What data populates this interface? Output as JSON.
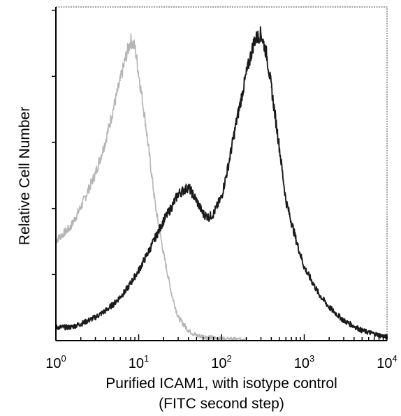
{
  "chart_data": {
    "type": "line",
    "title": "",
    "xlabel": "Purified ICAM1, with isotype control",
    "xlabel_line2": "(FITC second step)",
    "ylabel": "Relative Cell Number",
    "x_scale": "log",
    "xlim": [
      1,
      10000
    ],
    "ylim": [
      0,
      1.0
    ],
    "x_ticks": [
      {
        "base": "10",
        "exp": "0",
        "value": 1
      },
      {
        "base": "10",
        "exp": "1",
        "value": 10
      },
      {
        "base": "10",
        "exp": "2",
        "value": 100
      },
      {
        "base": "10",
        "exp": "3",
        "value": 1000
      },
      {
        "base": "10",
        "exp": "4",
        "value": 10000
      }
    ],
    "y_tick_count": 5,
    "grid": false,
    "legend": "none",
    "series": [
      {
        "role": "isotype control",
        "color": "#b5b5b5",
        "x": [
          1,
          1.5,
          2,
          3,
          4,
          5,
          6,
          7,
          8,
          9,
          10,
          12,
          14,
          16,
          20,
          25,
          30,
          40,
          50,
          70,
          100,
          150,
          200
        ],
        "y": [
          0.3,
          0.34,
          0.4,
          0.5,
          0.6,
          0.7,
          0.78,
          0.85,
          0.9,
          0.88,
          0.8,
          0.66,
          0.52,
          0.4,
          0.26,
          0.14,
          0.07,
          0.03,
          0.015,
          0.01,
          0.005,
          0.003,
          0.002
        ]
      },
      {
        "role": "Purified ICAM1",
        "color": "#1a1a1a",
        "x": [
          1,
          1.5,
          2,
          3,
          4,
          5,
          7,
          10,
          14,
          20,
          25,
          30,
          40,
          50,
          60,
          70,
          80,
          100,
          120,
          150,
          200,
          250,
          300,
          350,
          400,
          500,
          600,
          800,
          1000,
          1500,
          2000,
          3000,
          5000,
          10000
        ],
        "y": [
          0.04,
          0.04,
          0.05,
          0.07,
          0.09,
          0.11,
          0.15,
          0.21,
          0.28,
          0.36,
          0.4,
          0.44,
          0.46,
          0.42,
          0.38,
          0.37,
          0.38,
          0.43,
          0.52,
          0.65,
          0.8,
          0.9,
          0.92,
          0.86,
          0.76,
          0.58,
          0.42,
          0.3,
          0.22,
          0.14,
          0.1,
          0.06,
          0.03,
          0.01
        ]
      }
    ]
  }
}
